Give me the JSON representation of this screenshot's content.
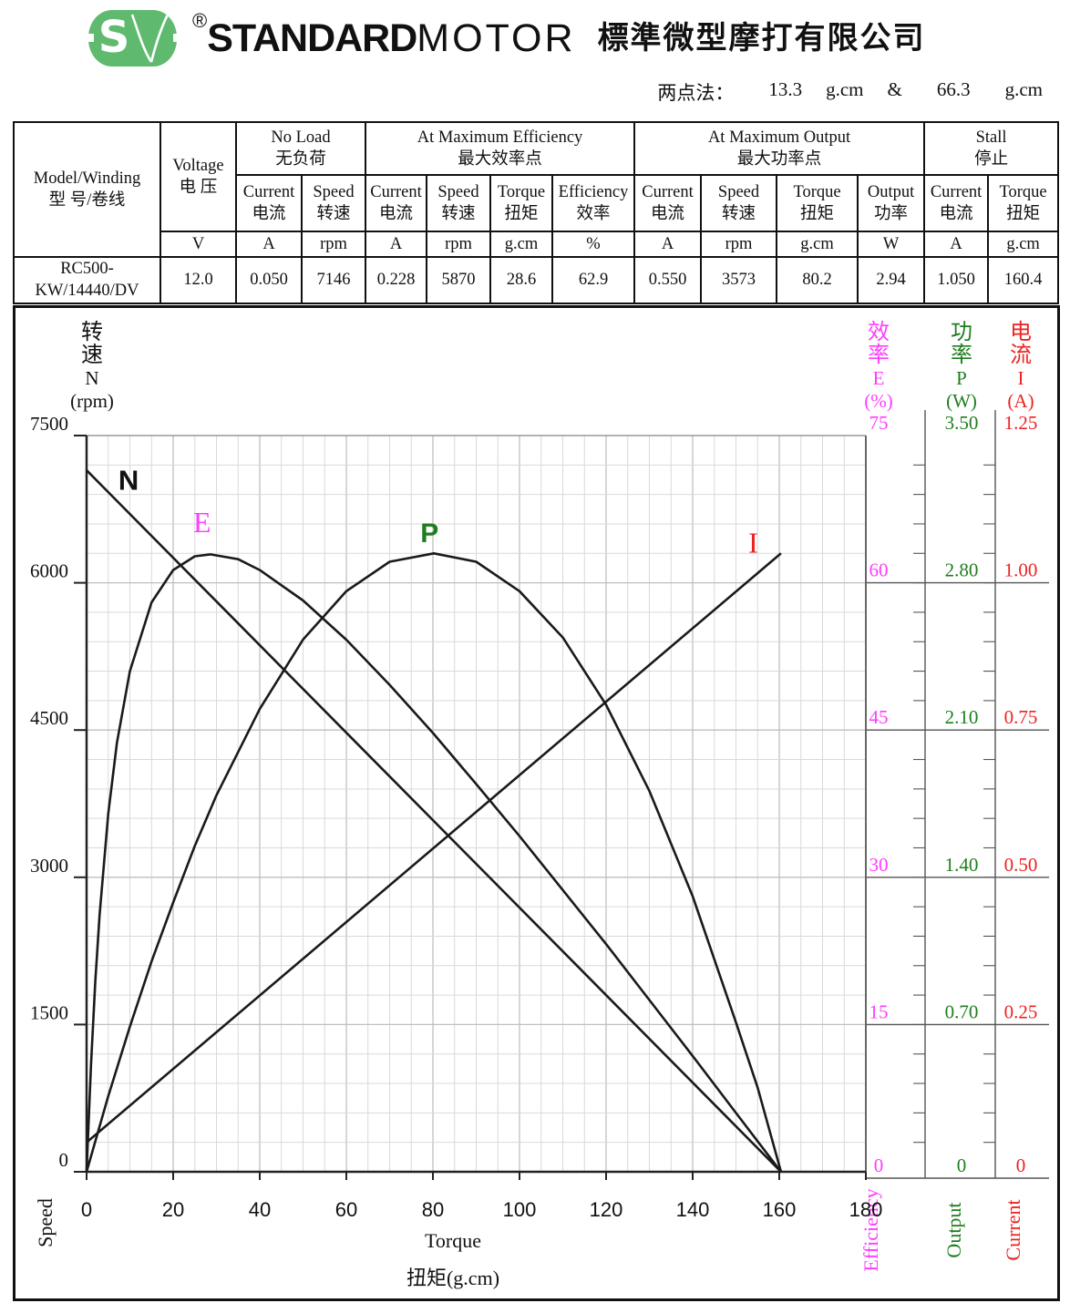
{
  "header": {
    "registered": "®",
    "brand_bold": "STANDARD",
    "brand_light": "MOTOR",
    "company_zh": "標準微型摩打有限公司",
    "logo_green": "#5fba6f"
  },
  "two_point": {
    "label": "两点法：",
    "value1": "13.3",
    "unit1": "g.cm",
    "amp": "&",
    "value2": "66.3",
    "unit2": "g.cm"
  },
  "spec_table": {
    "model_header": {
      "en": "Model/Winding",
      "zh": "型 号/卷线"
    },
    "voltage_header": {
      "en": "Voltage",
      "zh": "电 压",
      "unit": "V"
    },
    "groups": [
      {
        "en": "No  Load",
        "zh": "无负荷",
        "cols": [
          {
            "en": "Current",
            "zh": "电流",
            "unit": "A"
          },
          {
            "en": "Speed",
            "zh": "转速",
            "unit": "rpm"
          }
        ]
      },
      {
        "en": "At  Maximum  Efficiency",
        "zh": "最大效率点",
        "cols": [
          {
            "en": "Current",
            "zh": "电流",
            "unit": "A"
          },
          {
            "en": "Speed",
            "zh": "转速",
            "unit": "rpm"
          },
          {
            "en": "Torque",
            "zh": "扭矩",
            "unit": "g.cm"
          },
          {
            "en": "Efficiency",
            "zh": "效率",
            "unit": "%"
          }
        ]
      },
      {
        "en": "At  Maximum  Output",
        "zh": "最大功率点",
        "cols": [
          {
            "en": "Current",
            "zh": "电流",
            "unit": "A"
          },
          {
            "en": "Speed",
            "zh": "转速",
            "unit": "rpm"
          },
          {
            "en": "Torque",
            "zh": "扭矩",
            "unit": "g.cm"
          },
          {
            "en": "Output",
            "zh": "功率",
            "unit": "W"
          }
        ]
      },
      {
        "en": "Stall",
        "zh": "停止",
        "cols": [
          {
            "en": "Current",
            "zh": "电流",
            "unit": "A"
          },
          {
            "en": "Torque",
            "zh": "扭矩",
            "unit": "g.cm"
          }
        ]
      }
    ],
    "row": {
      "model": "RC500-KW/14440/DV",
      "voltage": "12.0",
      "values": [
        "0.050",
        "7146",
        "0.228",
        "5870",
        "28.6",
        "62.9",
        "0.550",
        "3573",
        "80.2",
        "2.94",
        "1.050",
        "160.4"
      ]
    }
  },
  "chart_data": {
    "type": "line",
    "x_axis": {
      "label_en": "Torque",
      "label_zh": "扭矩(g.cm)",
      "min": 0,
      "max": 180,
      "major_step": 20,
      "minor_step": 5,
      "ticks": [
        "0",
        "20",
        "40",
        "60",
        "80",
        "100",
        "120",
        "140",
        "160",
        "180"
      ]
    },
    "y_left": {
      "title_lines": [
        "转",
        "速",
        "N",
        "(rpm)"
      ],
      "rotated_label": "Speed",
      "color": "#111",
      "min": 0,
      "max": 7500,
      "major_step": 1500,
      "minor_step": 300,
      "ticks": [
        "7500",
        "6000",
        "4500",
        "3000",
        "1500",
        "0"
      ]
    },
    "right_axes": [
      {
        "key": "efficiency",
        "title_lines": [
          "效",
          "率",
          "E",
          "(%)"
        ],
        "bottom_label": "Efficiency",
        "color": "#ff3cff",
        "min": 0,
        "max": 75,
        "ticks": [
          "75",
          "60",
          "45",
          "30",
          "15",
          "0"
        ]
      },
      {
        "key": "power",
        "title_lines": [
          "功",
          "率",
          "P",
          "(W)"
        ],
        "bottom_label": "Output",
        "color": "#1e7e1e",
        "min": 0,
        "max": 3.5,
        "ticks": [
          "3.50",
          "2.80",
          "2.10",
          "1.40",
          "0.70",
          "0"
        ]
      },
      {
        "key": "current",
        "title_lines": [
          "电",
          "流",
          "I",
          "(A)"
        ],
        "bottom_label": "Current",
        "color": "#ee2222",
        "min": 0,
        "max": 1.25,
        "ticks": [
          "1.25",
          "1.00",
          "0.75",
          "0.50",
          "0.25",
          "0"
        ]
      }
    ],
    "axes_ranges": {
      "speed": [
        0,
        7500
      ],
      "efficiency": [
        0,
        75
      ],
      "power": [
        0,
        3.5
      ],
      "current": [
        0,
        1.25
      ]
    },
    "series": [
      {
        "name": "N",
        "axis": "speed",
        "color": "#1a1a1a",
        "label": {
          "text": "N",
          "t": 9.7,
          "f": 0.064,
          "color": "#111",
          "serif": false,
          "size": 31
        },
        "points": [
          [
            0,
            7146
          ],
          [
            160.4,
            0
          ]
        ]
      },
      {
        "name": "E",
        "axis": "efficiency",
        "color": "#1a1a1a",
        "label": {
          "text": "E",
          "t": 26.7,
          "f": 0.121,
          "color": "#ff3cff",
          "serif": true,
          "size": 32
        },
        "points": [
          [
            0,
            0
          ],
          [
            1,
            10.8
          ],
          [
            2,
            19.3
          ],
          [
            3,
            26.2
          ],
          [
            5,
            36.5
          ],
          [
            7,
            43.7
          ],
          [
            10,
            51.0
          ],
          [
            15,
            58.0
          ],
          [
            20,
            61.3
          ],
          [
            25,
            62.7
          ],
          [
            28.6,
            62.9
          ],
          [
            35,
            62.4
          ],
          [
            40,
            61.3
          ],
          [
            50,
            58.2
          ],
          [
            60,
            54.2
          ],
          [
            70,
            49.6
          ],
          [
            80,
            44.7
          ],
          [
            90,
            39.5
          ],
          [
            100,
            34.2
          ],
          [
            110,
            28.7
          ],
          [
            120,
            23.2
          ],
          [
            130,
            17.5
          ],
          [
            140,
            11.8
          ],
          [
            150,
            6.0
          ],
          [
            155,
            3.1
          ],
          [
            160.4,
            0
          ]
        ]
      },
      {
        "name": "P",
        "axis": "power",
        "color": "#1a1a1a",
        "label": {
          "text": "P",
          "t": 79.2,
          "f": 0.135,
          "color": "#1e7e1e",
          "serif": false,
          "size": 30
        },
        "points": [
          [
            0,
            0
          ],
          [
            5,
            0.36
          ],
          [
            10,
            0.69
          ],
          [
            15,
            1.0
          ],
          [
            20,
            1.28
          ],
          [
            25,
            1.55
          ],
          [
            30,
            1.79
          ],
          [
            40,
            2.2
          ],
          [
            50,
            2.53
          ],
          [
            60,
            2.76
          ],
          [
            70,
            2.9
          ],
          [
            80.2,
            2.94
          ],
          [
            90,
            2.9
          ],
          [
            100,
            2.76
          ],
          [
            110,
            2.54
          ],
          [
            120,
            2.22
          ],
          [
            130,
            1.81
          ],
          [
            140,
            1.31
          ],
          [
            150,
            0.71
          ],
          [
            155,
            0.4
          ],
          [
            160.4,
            0
          ]
        ]
      },
      {
        "name": "I",
        "axis": "current",
        "color": "#1a1a1a",
        "label": {
          "text": "I",
          "t": 154,
          "f": 0.149,
          "color": "#ee2222",
          "serif": true,
          "size": 32
        },
        "points": [
          [
            0,
            0.05
          ],
          [
            160.4,
            1.05
          ]
        ]
      }
    ],
    "grid": {
      "minor_color": "#d9d9d9",
      "major_color": "#bfbfbf",
      "on": true
    },
    "legend_position": "curve-labels"
  }
}
